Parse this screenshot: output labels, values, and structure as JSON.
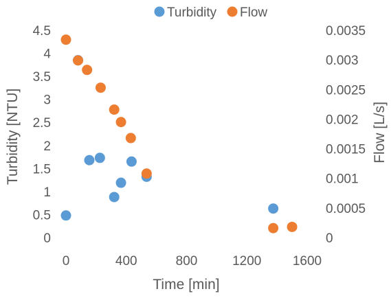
{
  "chart_data": {
    "type": "scatter",
    "xlabel": "Time [min]",
    "ylabel": "Turbidity [NTU]",
    "y2label": "Flow [L/s]",
    "xlim": [
      0,
      1600
    ],
    "ylim": [
      0,
      4.5
    ],
    "y2lim": [
      0,
      0.0035
    ],
    "x_ticks": [
      "0",
      "400",
      "800",
      "1200",
      "1600"
    ],
    "y_ticks": [
      "0",
      "0.5",
      "1",
      "1.5",
      "2",
      "2.5",
      "3",
      "3.5",
      "4",
      "4.5"
    ],
    "y2_ticks": [
      "0",
      "0.0005",
      "0.001",
      "0.0015",
      "0.002",
      "0.0025",
      "0.003",
      "0.0035"
    ],
    "grid": false,
    "legend_position": "top",
    "series": [
      {
        "name": "Turbidity",
        "axis": "left",
        "color": "#5B9BD5",
        "points": [
          {
            "x": 0,
            "y": 0.48
          },
          {
            "x": 80,
            "y": 3.85
          },
          {
            "x": 155,
            "y": 1.68
          },
          {
            "x": 225,
            "y": 1.73
          },
          {
            "x": 320,
            "y": 0.88
          },
          {
            "x": 365,
            "y": 1.19
          },
          {
            "x": 435,
            "y": 1.65
          },
          {
            "x": 535,
            "y": 1.32
          },
          {
            "x": 1375,
            "y": 0.63
          }
        ]
      },
      {
        "name": "Flow",
        "axis": "right",
        "color": "#ED7D31",
        "points": [
          {
            "x": 0,
            "y": 0.00334
          },
          {
            "x": 80,
            "y": 0.00299
          },
          {
            "x": 140,
            "y": 0.00283
          },
          {
            "x": 230,
            "y": 0.00253
          },
          {
            "x": 320,
            "y": 0.00216
          },
          {
            "x": 365,
            "y": 0.00195
          },
          {
            "x": 430,
            "y": 0.00168
          },
          {
            "x": 535,
            "y": 0.00108
          },
          {
            "x": 1375,
            "y": 0.00016
          },
          {
            "x": 1500,
            "y": 0.00018
          }
        ]
      }
    ]
  }
}
